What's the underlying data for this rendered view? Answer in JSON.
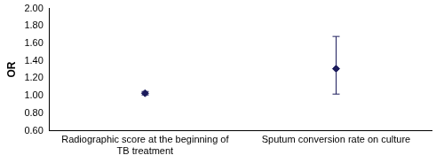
{
  "chart_data": {
    "type": "scatter",
    "y_label": "OR",
    "categories": [
      "Radiographic score at the beginning of TB treatment",
      "Sputum conversion rate on culture"
    ],
    "values": [
      1.03,
      1.31
    ],
    "lower": [
      1.01,
      1.02
    ],
    "upper": [
      1.05,
      1.68
    ],
    "color": "#1c1c5c",
    "marker": "diamond",
    "ylim": [
      0.6,
      2.0
    ],
    "yticks": [
      {
        "value": 0.6,
        "label": "0.60"
      },
      {
        "value": 0.8,
        "label": "0.80"
      },
      {
        "value": 1.0,
        "label": "1.00"
      },
      {
        "value": 1.2,
        "label": "1.20"
      },
      {
        "value": 1.4,
        "label": "1.40"
      },
      {
        "value": 1.6,
        "label": "1.60"
      },
      {
        "value": 1.8,
        "label": "1.80"
      },
      {
        "value": 2.0,
        "label": "2.00"
      }
    ],
    "grid": false
  }
}
